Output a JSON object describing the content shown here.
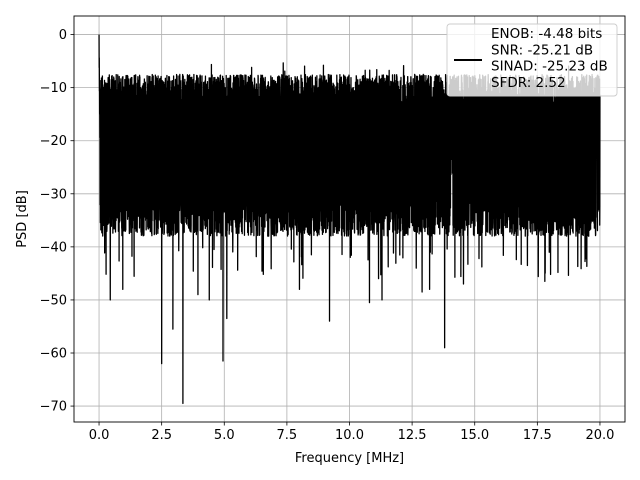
{
  "chart_data": {
    "type": "line",
    "title": "",
    "xlabel": "Frequency [MHz]",
    "ylabel": "PSD [dB]",
    "xlim": [
      -1.0,
      21.0
    ],
    "ylim": [
      -73.0,
      3.5
    ],
    "xticks": [
      0.0,
      2.5,
      5.0,
      7.5,
      10.0,
      12.5,
      15.0,
      17.5,
      20.0
    ],
    "xtick_labels": [
      "0.0",
      "2.5",
      "5.0",
      "7.5",
      "10.0",
      "12.5",
      "15.0",
      "17.5",
      "20.0"
    ],
    "yticks": [
      0,
      -10,
      -20,
      -30,
      -40,
      -50,
      -60,
      -70
    ],
    "ytick_labels": [
      "0",
      "−10",
      "−20",
      "−30",
      "−40",
      "−50",
      "−60",
      "−70"
    ],
    "grid": true,
    "legend": {
      "location": "upper-right",
      "entries": [
        "ENOB: -4.48 bits",
        "SNR: -25.21 dB",
        "SINAD: -25.23 dB",
        "SFDR: 2.52"
      ]
    },
    "series": [
      {
        "color": "#000000",
        "x_start": 0.0,
        "x_end": 20.0,
        "peak": {
          "x": 0.0,
          "y": 0.0
        },
        "upper_envelope_y": -10.0,
        "median_y": -20.0,
        "lower_envelope_y": -35.0,
        "deep_nulls": [
          {
            "x": 0.45,
            "y": -50.0
          },
          {
            "x": 0.95,
            "y": -48.0
          },
          {
            "x": 2.5,
            "y": -62.0
          },
          {
            "x": 2.95,
            "y": -55.5
          },
          {
            "x": 3.35,
            "y": -69.5
          },
          {
            "x": 3.95,
            "y": -49.0
          },
          {
            "x": 4.4,
            "y": -50.0
          },
          {
            "x": 4.95,
            "y": -61.5
          },
          {
            "x": 5.1,
            "y": -53.5
          },
          {
            "x": 8.0,
            "y": -48.0
          },
          {
            "x": 9.2,
            "y": -54.0
          },
          {
            "x": 10.8,
            "y": -50.5
          },
          {
            "x": 11.3,
            "y": -50.0
          },
          {
            "x": 12.9,
            "y": -48.5
          },
          {
            "x": 13.2,
            "y": -48.0
          },
          {
            "x": 13.8,
            "y": -59.0
          },
          {
            "x": 14.55,
            "y": -47.0
          },
          {
            "x": 17.8,
            "y": -46.5
          }
        ]
      }
    ]
  }
}
